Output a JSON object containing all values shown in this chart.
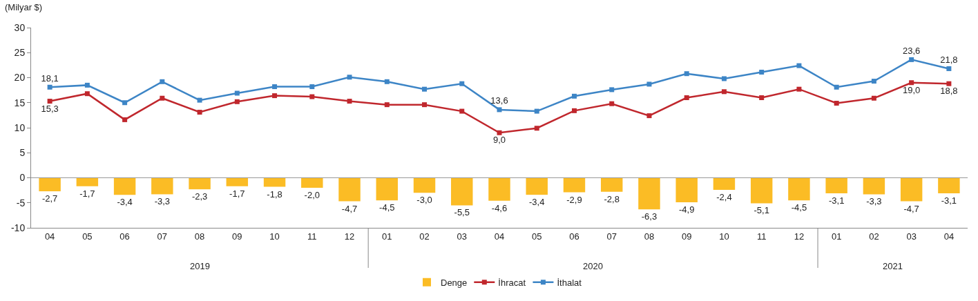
{
  "chart_data": {
    "type": "bar",
    "ylabel": "(Milyar $)",
    "categories": [
      "04",
      "05",
      "06",
      "07",
      "08",
      "09",
      "10",
      "11",
      "12",
      "01",
      "02",
      "03",
      "04",
      "05",
      "06",
      "07",
      "08",
      "09",
      "10",
      "11",
      "12",
      "01",
      "02",
      "03",
      "04"
    ],
    "annotations": [
      "2019",
      "2020",
      "2021"
    ],
    "series": [
      {
        "name": "Denge",
        "color": "#fbbc25",
        "values": [
          -2.7,
          -1.7,
          -3.4,
          -3.3,
          -2.3,
          -1.7,
          -1.8,
          -2.0,
          -4.7,
          -4.5,
          -3.0,
          -5.5,
          -4.6,
          -3.4,
          -2.9,
          -2.8,
          -6.3,
          -4.9,
          -2.4,
          -5.1,
          -4.5,
          -3.1,
          -3.3,
          -4.7,
          -3.1
        ],
        "value_labels": [
          "-2,7",
          "-1,7",
          "-3,4",
          "-3,3",
          "-2,3",
          "-1,7",
          "-1,8",
          "-2,0",
          "-4,7",
          "-4,5",
          "-3,0",
          "-5,5",
          "-4,6",
          "-3,4",
          "-2,9",
          "-2,8",
          "-6,3",
          "-4,9",
          "-2,4",
          "-5,1",
          "-4,5",
          "-3,1",
          "-3,3",
          "-4,7",
          "-3,1"
        ]
      },
      {
        "name": "İhracat",
        "type": "line",
        "color": "#c0272d",
        "values": [
          15.3,
          16.8,
          11.6,
          15.9,
          13.1,
          15.2,
          16.4,
          16.2,
          15.3,
          14.6,
          14.6,
          13.3,
          9.0,
          9.9,
          13.4,
          14.8,
          12.4,
          16.0,
          17.2,
          16.0,
          17.7,
          14.9,
          15.9,
          19.0,
          18.8
        ],
        "value_labels": [
          "15,3",
          null,
          null,
          null,
          null,
          null,
          null,
          null,
          null,
          null,
          null,
          null,
          "9,0",
          null,
          null,
          null,
          null,
          null,
          null,
          null,
          null,
          null,
          null,
          "19,0",
          "18,8"
        ]
      },
      {
        "name": "İthalat",
        "type": "line",
        "color": "#3d85c6",
        "values": [
          18.1,
          18.5,
          15.0,
          19.2,
          15.5,
          16.9,
          18.2,
          18.2,
          20.1,
          19.2,
          17.7,
          18.8,
          13.6,
          13.3,
          16.3,
          17.6,
          18.7,
          20.8,
          19.8,
          21.1,
          22.4,
          18.1,
          19.3,
          23.6,
          21.8
        ],
        "value_labels": [
          "18,1",
          null,
          null,
          null,
          null,
          null,
          null,
          null,
          null,
          null,
          null,
          null,
          "13,6",
          null,
          null,
          null,
          null,
          null,
          null,
          null,
          null,
          null,
          null,
          "23,6",
          "21,8"
        ]
      }
    ],
    "ylim": [
      -10,
      30
    ],
    "yticks": [
      -10,
      -5,
      0,
      5,
      10,
      15,
      20,
      25,
      30
    ],
    "ref_lines": [
      {
        "axis": "y",
        "value": 0,
        "color": "#999999"
      }
    ],
    "legend": "bottom",
    "marker": "square",
    "line_style": "solid"
  }
}
